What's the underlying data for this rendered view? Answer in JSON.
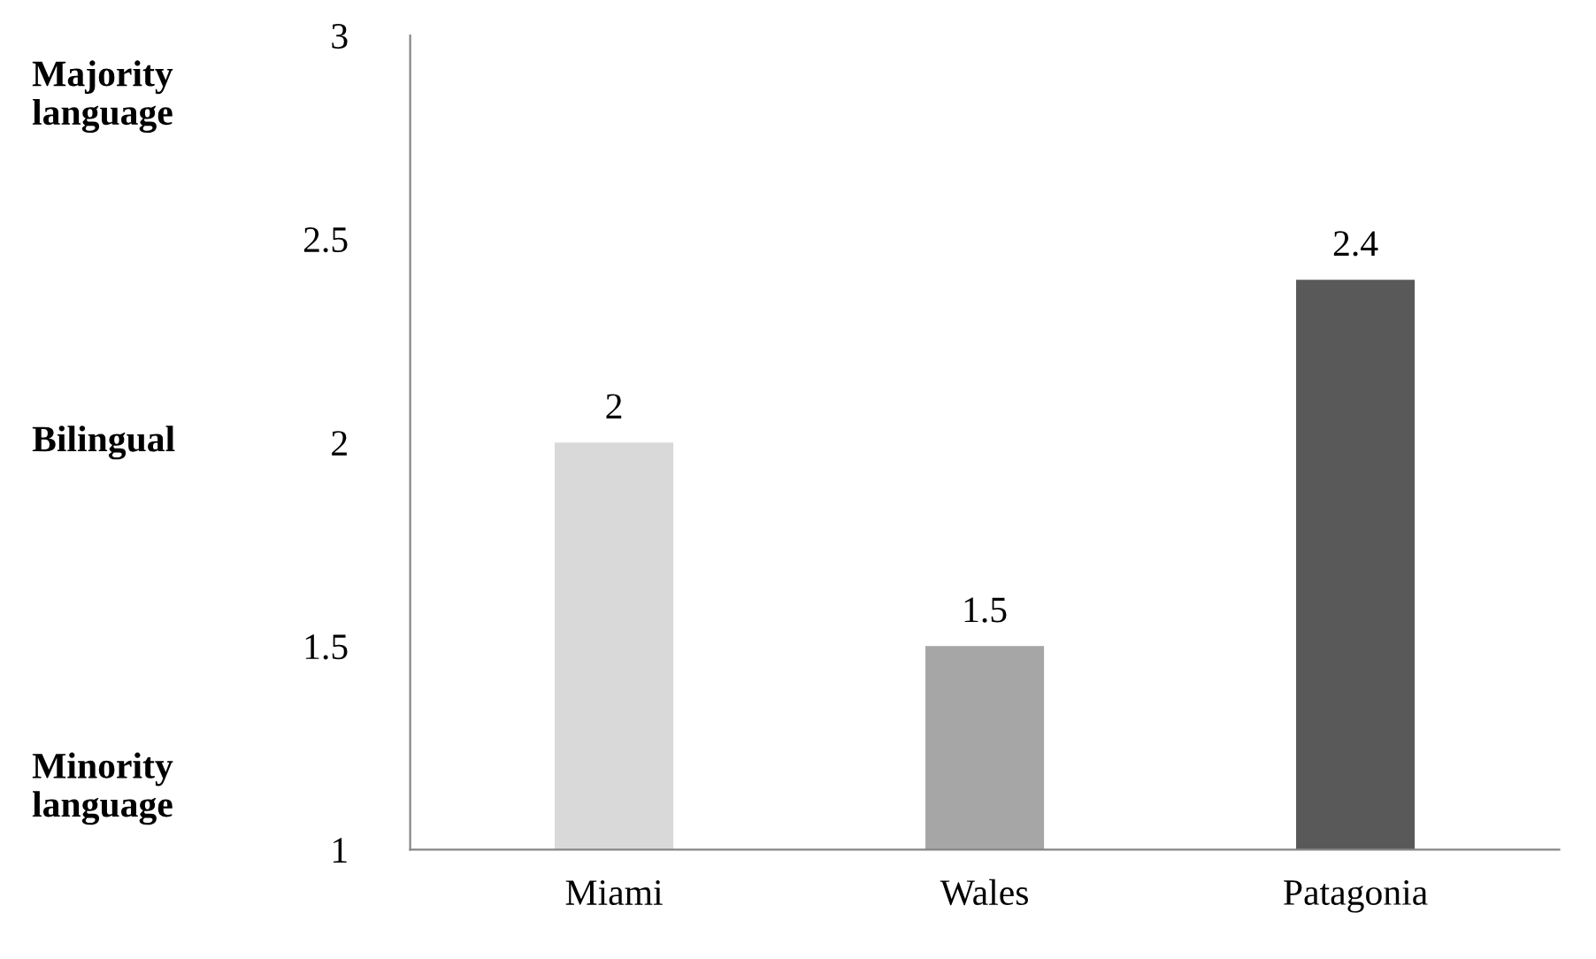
{
  "chart_data": {
    "type": "bar",
    "categories": [
      "Miami",
      "Wales",
      "Patagonia"
    ],
    "values": [
      2,
      1.5,
      2.4
    ],
    "colors": [
      "#d9d9d9",
      "#a6a6a6",
      "#595959"
    ],
    "ylim": [
      1,
      3
    ],
    "yticks": [
      1,
      1.5,
      2,
      2.5,
      3
    ],
    "data_labels": true,
    "grid": false,
    "legend": false,
    "annotations": [
      "Majority\nlanguage",
      "Bilingual",
      "Minority\nlanguage"
    ]
  }
}
